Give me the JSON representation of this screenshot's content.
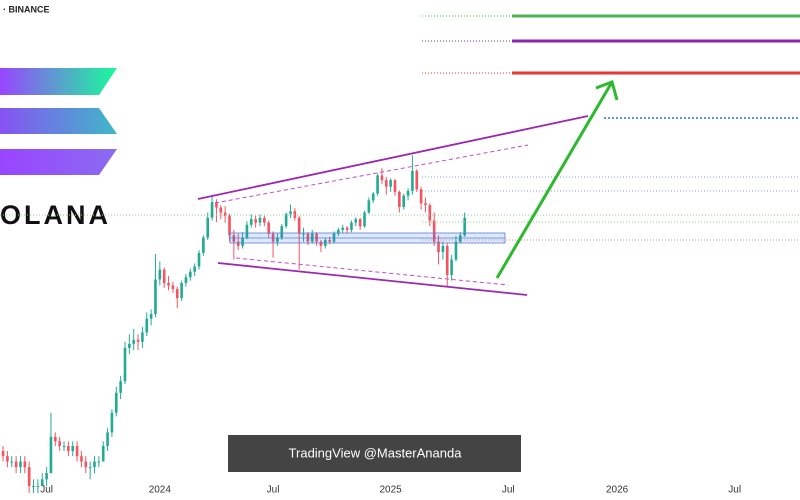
{
  "chart_data": {
    "type": "candlestick",
    "source": "· BINANCE",
    "logo_text": "OLANA",
    "watermark": "TradingView @MasterAnanda",
    "log_scale": true,
    "up_color": "#22ab94",
    "down_color": "#f7525f",
    "ylim": [
      17,
      1127
    ],
    "xlim": [
      -0.7,
      183
    ],
    "xticks": [
      {
        "value": 10,
        "label": "Jul"
      },
      {
        "value": 36,
        "label": "2024"
      },
      {
        "value": 62,
        "label": "Jul"
      },
      {
        "value": 89,
        "label": "2025"
      },
      {
        "value": 116,
        "label": "Jul"
      },
      {
        "value": 141,
        "label": "2026"
      },
      {
        "value": 168,
        "label": "Jul"
      }
    ],
    "ohlc": [
      [
        23,
        24,
        21,
        22
      ],
      [
        22,
        23,
        20,
        21
      ],
      [
        21,
        22,
        20,
        21
      ],
      [
        21,
        22,
        19,
        20
      ],
      [
        20,
        22,
        19,
        21
      ],
      [
        21,
        22,
        19,
        20
      ],
      [
        20,
        21,
        16,
        17
      ],
      [
        17,
        18,
        16,
        17
      ],
      [
        17,
        18,
        16,
        17
      ],
      [
        17,
        19,
        17,
        18
      ],
      [
        18,
        20,
        17,
        19
      ],
      [
        19,
        32,
        19,
        26
      ],
      [
        26,
        27,
        24,
        25
      ],
      [
        25,
        26,
        23,
        24
      ],
      [
        24,
        25,
        23,
        24
      ],
      [
        24,
        25,
        22,
        23
      ],
      [
        23,
        25,
        22,
        24
      ],
      [
        24,
        25,
        21,
        22
      ],
      [
        22,
        23,
        20,
        21
      ],
      [
        21,
        22,
        19,
        20
      ],
      [
        20,
        21,
        18,
        20
      ],
      [
        20,
        22,
        19,
        21
      ],
      [
        21,
        22,
        20,
        21
      ],
      [
        21,
        25,
        21,
        24
      ],
      [
        24,
        28,
        23,
        27
      ],
      [
        27,
        33,
        26,
        32
      ],
      [
        32,
        40,
        31,
        38
      ],
      [
        38,
        44,
        36,
        42
      ],
      [
        42,
        59,
        41,
        56
      ],
      [
        56,
        63,
        53,
        58
      ],
      [
        58,
        66,
        55,
        60
      ],
      [
        60,
        63,
        55,
        59
      ],
      [
        59,
        67,
        56,
        64
      ],
      [
        64,
        76,
        62,
        72
      ],
      [
        72,
        78,
        68,
        75
      ],
      [
        75,
        126,
        73,
        101
      ],
      [
        101,
        118,
        96,
        110
      ],
      [
        110,
        112,
        94,
        98
      ],
      [
        98,
        104,
        92,
        96
      ],
      [
        96,
        99,
        90,
        93
      ],
      [
        93,
        95,
        79,
        86
      ],
      [
        86,
        100,
        84,
        98
      ],
      [
        98,
        106,
        95,
        103
      ],
      [
        103,
        111,
        100,
        108
      ],
      [
        108,
        116,
        104,
        113
      ],
      [
        113,
        130,
        110,
        127
      ],
      [
        127,
        148,
        124,
        145
      ],
      [
        145,
        180,
        142,
        172
      ],
      [
        172,
        210,
        168,
        197
      ],
      [
        197,
        202,
        166,
        188
      ],
      [
        188,
        192,
        170,
        180
      ],
      [
        180,
        190,
        165,
        175
      ],
      [
        175,
        178,
        140,
        148
      ],
      [
        148,
        155,
        120,
        140
      ],
      [
        140,
        150,
        130,
        135
      ],
      [
        135,
        152,
        132,
        145
      ],
      [
        145,
        167,
        143,
        162
      ],
      [
        162,
        177,
        158,
        170
      ],
      [
        170,
        175,
        158,
        165
      ],
      [
        165,
        177,
        160,
        172
      ],
      [
        172,
        175,
        160,
        165
      ],
      [
        165,
        168,
        145,
        150
      ],
      [
        150,
        153,
        122,
        140
      ],
      [
        140,
        150,
        135,
        145
      ],
      [
        145,
        163,
        142,
        160
      ],
      [
        160,
        180,
        157,
        178
      ],
      [
        178,
        193,
        172,
        182
      ],
      [
        182,
        187,
        168,
        172
      ],
      [
        172,
        175,
        110,
        150
      ],
      [
        150,
        158,
        140,
        150
      ],
      [
        150,
        152,
        136,
        140
      ],
      [
        140,
        155,
        138,
        150
      ],
      [
        150,
        152,
        135,
        140
      ],
      [
        140,
        142,
        128,
        135
      ],
      [
        135,
        145,
        132,
        142
      ],
      [
        142,
        146,
        137,
        140
      ],
      [
        140,
        153,
        138,
        150
      ],
      [
        150,
        158,
        147,
        155
      ],
      [
        155,
        162,
        150,
        158
      ],
      [
        158,
        160,
        150,
        155
      ],
      [
        155,
        168,
        152,
        165
      ],
      [
        165,
        173,
        160,
        170
      ],
      [
        170,
        172,
        155,
        160
      ],
      [
        160,
        183,
        158,
        180
      ],
      [
        180,
        205,
        178,
        200
      ],
      [
        200,
        215,
        195,
        212
      ],
      [
        212,
        252,
        208,
        248
      ],
      [
        248,
        264,
        230,
        238
      ],
      [
        238,
        245,
        210,
        225
      ],
      [
        225,
        242,
        215,
        238
      ],
      [
        238,
        240,
        208,
        215
      ],
      [
        215,
        218,
        180,
        189
      ],
      [
        189,
        212,
        185,
        208
      ],
      [
        208,
        222,
        200,
        217
      ],
      [
        217,
        295,
        210,
        258
      ],
      [
        258,
        262,
        215,
        220
      ],
      [
        220,
        225,
        185,
        195
      ],
      [
        195,
        205,
        180,
        192
      ],
      [
        192,
        195,
        160,
        168
      ],
      [
        168,
        180,
        135,
        140
      ],
      [
        140,
        148,
        115,
        128
      ],
      [
        128,
        140,
        120,
        135
      ],
      [
        135,
        138,
        95,
        105
      ],
      [
        105,
        125,
        100,
        120
      ],
      [
        120,
        147,
        118,
        140
      ],
      [
        140,
        152,
        138,
        148
      ],
      [
        148,
        180,
        146,
        172
      ]
    ]
  }
}
